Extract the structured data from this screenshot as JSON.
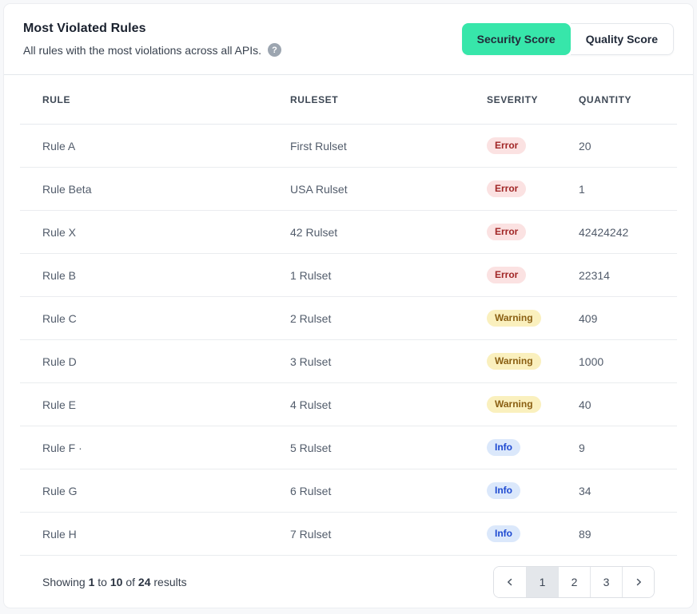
{
  "header": {
    "title": "Most Violated Rules",
    "subtitle": "All rules with the most violations across all APIs.",
    "help_icon": "question-mark-icon",
    "toggle": {
      "active_color": "#37E6AA",
      "options": [
        {
          "label": "Security Score",
          "active": true
        },
        {
          "label": "Quality Score",
          "active": false
        }
      ]
    }
  },
  "table": {
    "columns": [
      "RULE",
      "RULESET",
      "SEVERITY",
      "QUANTITY"
    ],
    "severity_colors": {
      "error": {
        "bg": "#FBE2E2",
        "text": "#A12626"
      },
      "warning": {
        "bg": "#FAF0BE",
        "text": "#8A5F12"
      },
      "info": {
        "bg": "#DBE8FB",
        "text": "#1D49D1"
      }
    },
    "rows": [
      {
        "rule": "Rule A",
        "ruleset": "First Rulset",
        "severity": "Error",
        "variant": "error",
        "quantity": "20"
      },
      {
        "rule": "Rule Beta",
        "ruleset": "USA Rulset",
        "severity": "Error",
        "variant": "error",
        "quantity": "1"
      },
      {
        "rule": "Rule X",
        "ruleset": "42 Rulset",
        "severity": "Error",
        "variant": "error",
        "quantity": "42424242"
      },
      {
        "rule": "Rule B",
        "ruleset": "1 Rulset",
        "severity": "Error",
        "variant": "error",
        "quantity": "22314"
      },
      {
        "rule": "Rule C",
        "ruleset": "2 Rulset",
        "severity": "Warning",
        "variant": "warning",
        "quantity": "409"
      },
      {
        "rule": "Rule D",
        "ruleset": "3 Rulset",
        "severity": "Warning",
        "variant": "warning",
        "quantity": "1000"
      },
      {
        "rule": "Rule E",
        "ruleset": "4 Rulset",
        "severity": "Warning",
        "variant": "warning",
        "quantity": "40"
      },
      {
        "rule": "Rule F ·",
        "ruleset": "5 Rulset",
        "severity": "Info",
        "variant": "info",
        "quantity": "9"
      },
      {
        "rule": "Rule G",
        "ruleset": "6 Rulset",
        "severity": "Info",
        "variant": "info",
        "quantity": "34"
      },
      {
        "rule": "Rule H",
        "ruleset": "7 Rulset",
        "severity": "Info",
        "variant": "info",
        "quantity": "89"
      }
    ]
  },
  "pagination": {
    "summary": {
      "prefix": "Showing ",
      "from": "1",
      "to_word": " to ",
      "to": "10",
      "of_word": " of ",
      "total": "24",
      "suffix": " results"
    },
    "prev_icon": "chevron-left-icon",
    "next_icon": "chevron-right-icon",
    "pages": [
      "1",
      "2",
      "3"
    ],
    "active_page": "1"
  }
}
